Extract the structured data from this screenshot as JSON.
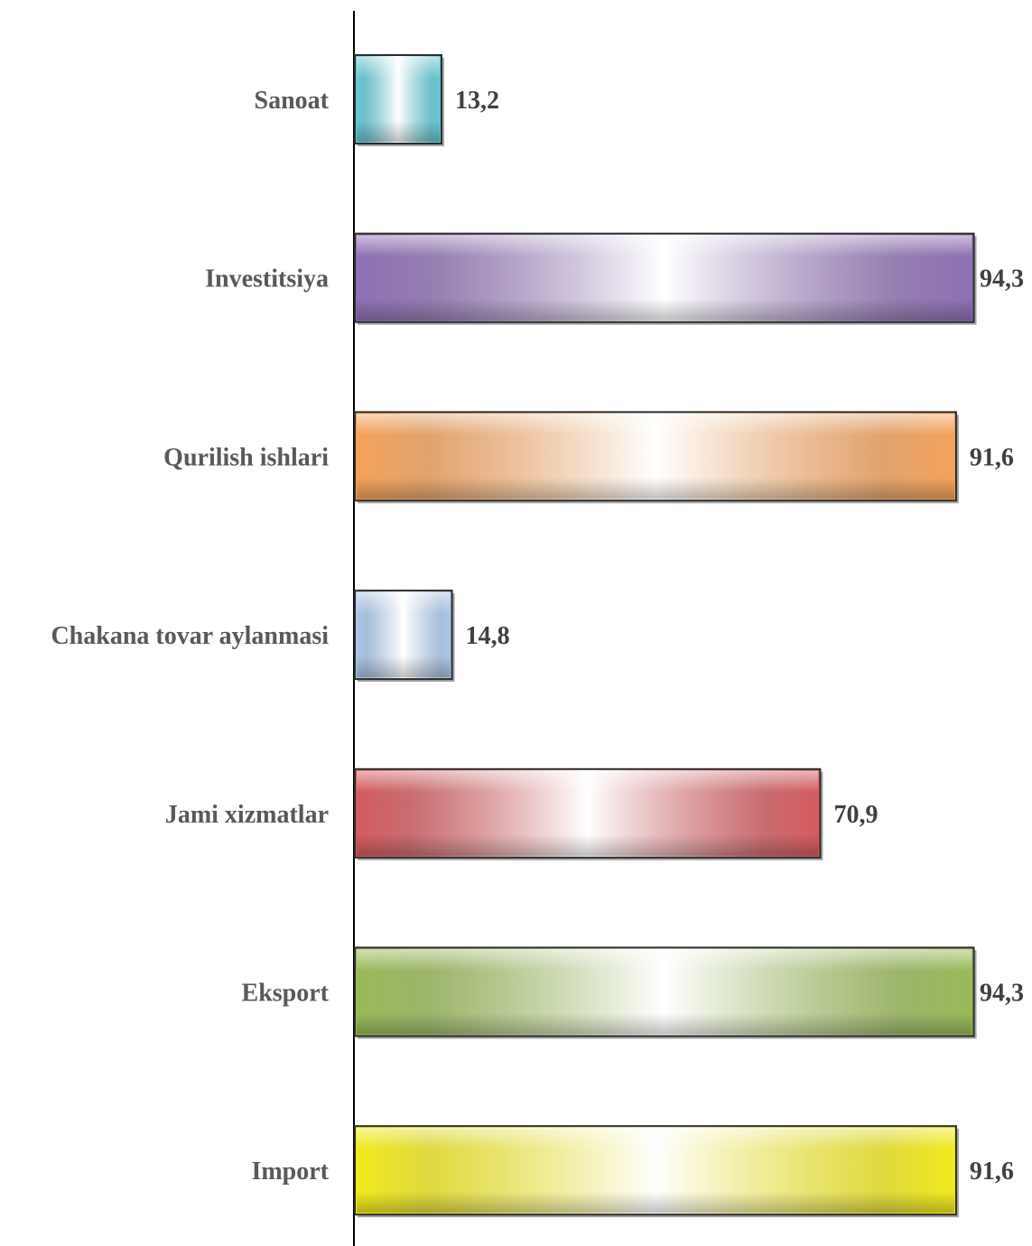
{
  "chart_data": {
    "type": "bar",
    "orientation": "horizontal",
    "categories": [
      "Sanoat",
      "Investitsiya",
      "Qurilish ishlari",
      "Chakana tovar aylanmasi",
      "Jami xizmatlar",
      "Eksport",
      "Import"
    ],
    "values": [
      13.2,
      94.3,
      91.6,
      14.8,
      70.9,
      94.3,
      91.6
    ],
    "value_labels": [
      "13,2",
      "94,3",
      "91,6",
      "14,8",
      "70,9",
      "94,3",
      "91,6"
    ],
    "bar_colors": [
      "#5fc8d6",
      "#8e6fb4",
      "#f5a25a",
      "#a9c6ea",
      "#d45a5e",
      "#9aba58",
      "#f2ea1c"
    ],
    "xlim": [
      0,
      100
    ],
    "title": "",
    "xlabel": "",
    "ylabel": "",
    "grid": false,
    "legend": "none"
  }
}
